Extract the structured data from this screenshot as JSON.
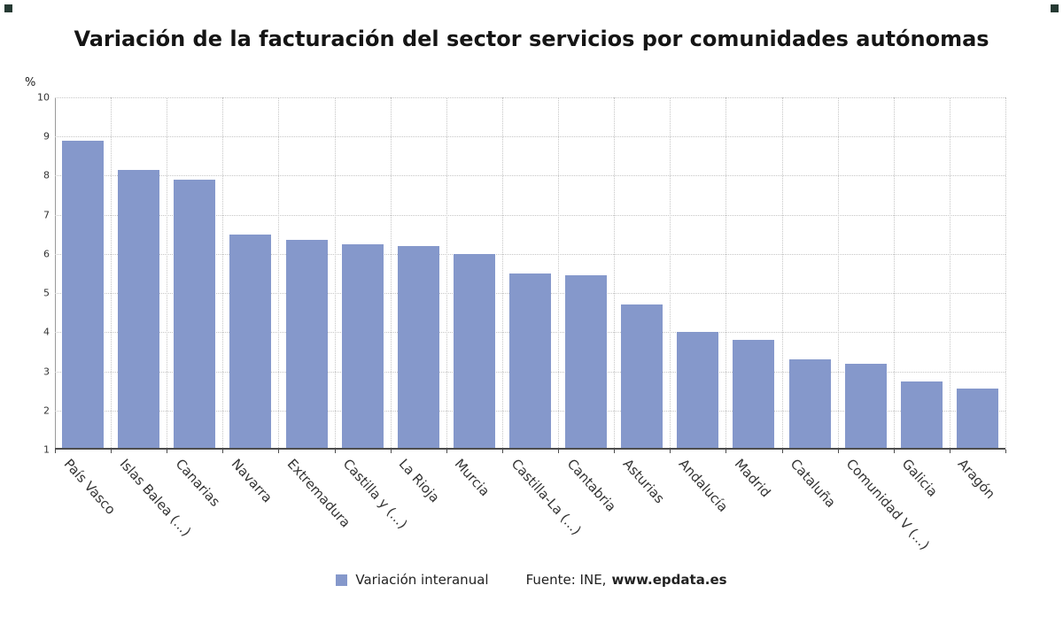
{
  "chart_data": {
    "type": "bar",
    "title": "Variación de la facturación del sector servicios por comunidades autónomas",
    "ylabel": "%",
    "ylim": [
      1,
      10
    ],
    "yticks": [
      1,
      2,
      3,
      4,
      5,
      6,
      7,
      8,
      9,
      10
    ],
    "grid": true,
    "legend": "Variación interanual",
    "legend_position": "bottom",
    "bar_color": "#8598cb",
    "categories": [
      "País Vasco",
      "Islas Balea (...)",
      "Canarias",
      "Navarra",
      "Extremadura",
      "Castilla y (...)",
      "La Rioja",
      "Murcia",
      "Castilla-La (...)",
      "Cantabria",
      "Asturias",
      "Andalucía",
      "Madrid",
      "Cataluña",
      "Comunidad V (...)",
      "Galicia",
      "Aragón"
    ],
    "values": [
      8.9,
      8.15,
      7.9,
      6.5,
      6.35,
      6.25,
      6.2,
      6.0,
      5.5,
      5.45,
      4.7,
      4.0,
      3.8,
      3.3,
      3.2,
      2.75,
      2.55
    ]
  },
  "footer": {
    "source_prefix": "Fuente: INE,",
    "source_link": "www.epdata.es"
  }
}
